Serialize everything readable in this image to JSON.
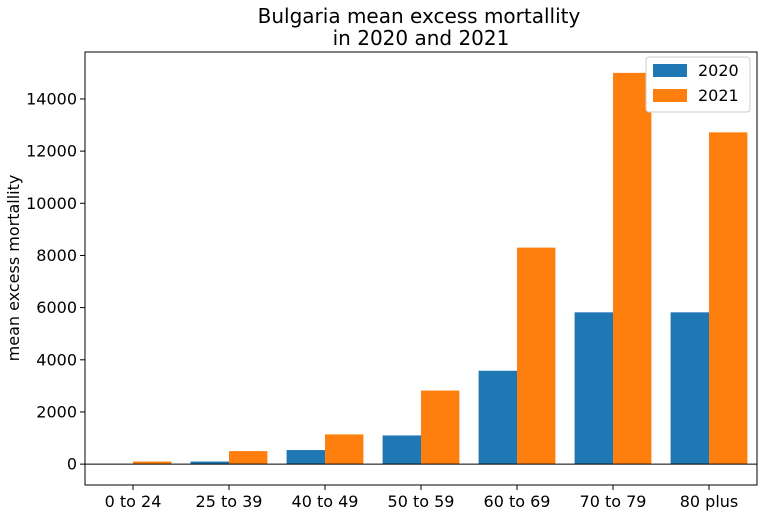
{
  "chart_data": {
    "type": "bar",
    "title_lines": [
      "Bulgaria mean excess mortallity",
      "in 2020 and 2021"
    ],
    "xlabel": "",
    "ylabel": "mean excess mortallity",
    "categories": [
      "0 to 24",
      "25 to 39",
      "40 to 49",
      "50 to 59",
      "60 to 69",
      "70 to 79",
      "80 plus"
    ],
    "series": [
      {
        "name": "2020",
        "color": "#1f77b4",
        "values": [
          5,
          100,
          540,
          1100,
          3580,
          5820,
          5820
        ]
      },
      {
        "name": "2021",
        "color": "#ff7f0e",
        "values": [
          100,
          500,
          1140,
          2820,
          8300,
          15000,
          12720
        ]
      }
    ],
    "ylim": [
      -800,
      15800
    ],
    "yticks": [
      0,
      2000,
      4000,
      6000,
      8000,
      10000,
      12000,
      14000
    ],
    "zero_line": true,
    "grid": false,
    "legend": "top-right"
  }
}
